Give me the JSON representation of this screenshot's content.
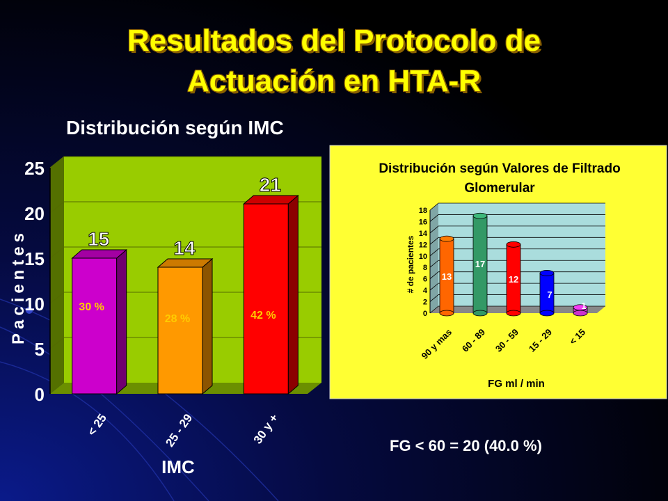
{
  "slide": {
    "title_line1": "Resultados del Protocolo de",
    "title_line2": "Actuación en HTA-R",
    "fg_summary": "FG < 60 = 20 (40.0 %)"
  },
  "chart_data": [
    {
      "type": "bar",
      "title": "Distribución según IMC",
      "xlabel": "IMC",
      "ylabel": "Pacientes",
      "categories": [
        "< 25",
        "25 - 29",
        "30 y +"
      ],
      "values": [
        15,
        14,
        21
      ],
      "percent_labels": [
        "30 %",
        "28 %",
        "42 %"
      ],
      "colors": [
        "#cc00cc",
        "#ff9900",
        "#ff0000"
      ],
      "ylim": [
        0,
        25
      ],
      "yticks": [
        0,
        5,
        10,
        15,
        20,
        25
      ],
      "plot_background": "#99cc00",
      "legend": "none"
    },
    {
      "type": "bar",
      "title": "Distribución según Valores de Filtrado Glomerular",
      "xlabel": "FG ml / min",
      "ylabel": "# de pacientes",
      "categories": [
        "90 y mas",
        "60 - 89",
        "30 - 59",
        "15 - 29",
        "< 15"
      ],
      "values": [
        13,
        17,
        12,
        7,
        1
      ],
      "colors": [
        "#ff6600",
        "#339966",
        "#ff0000",
        "#0000ff",
        "#cc33cc"
      ],
      "ylim": [
        0,
        18
      ],
      "yticks": [
        0,
        2,
        4,
        6,
        8,
        10,
        12,
        14,
        16,
        18
      ],
      "background": "#ffff33",
      "plot_background": "#aadddd",
      "legend": "none"
    }
  ]
}
